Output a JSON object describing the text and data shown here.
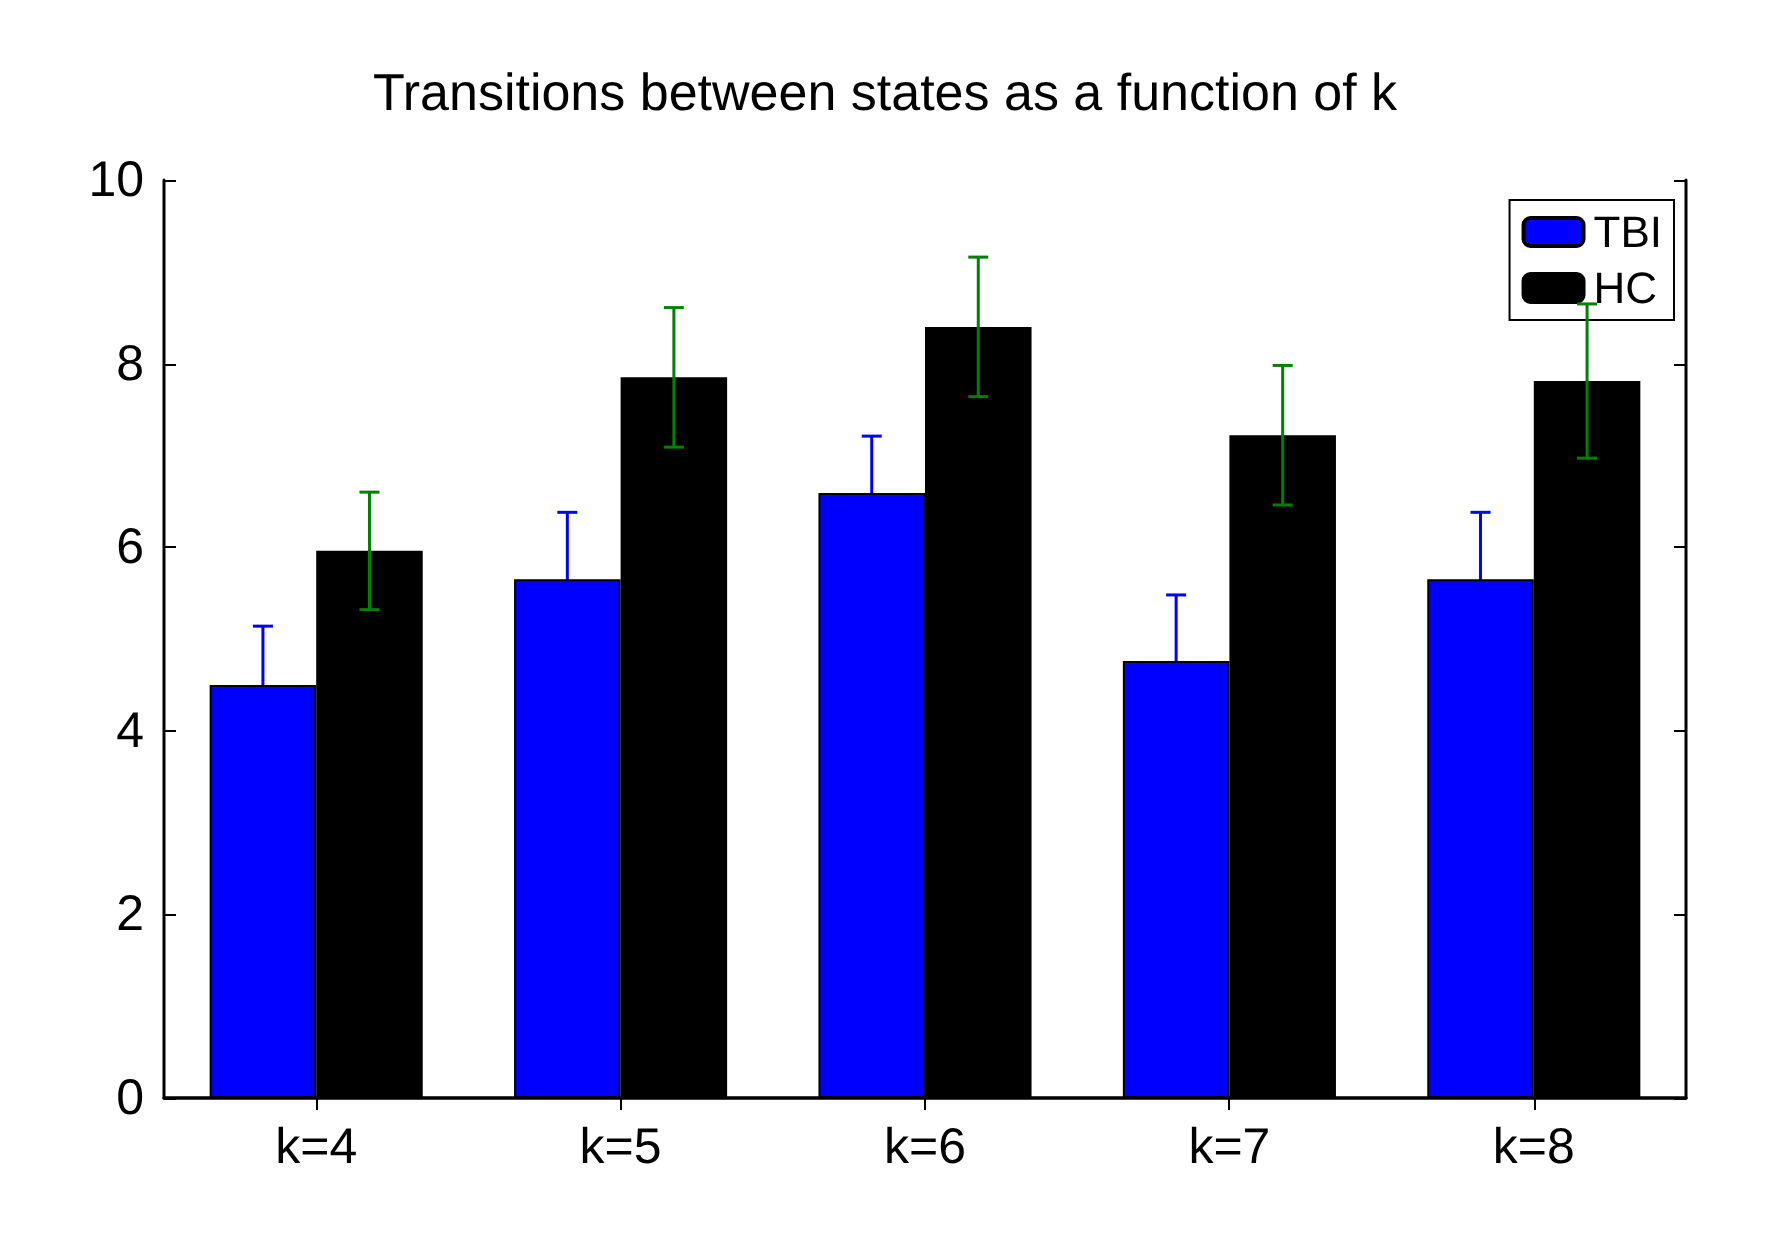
{
  "chart_data": {
    "type": "bar",
    "title": "Transitions between states as a function of k",
    "categories": [
      "k=4",
      "k=5",
      "k=6",
      "k=7",
      "k=8"
    ],
    "series": [
      {
        "name": "TBI",
        "color": "#0000ff",
        "values": [
          4.5,
          5.65,
          6.59,
          4.76,
          5.65
        ],
        "errors": [
          0.64,
          0.73,
          0.62,
          0.72,
          0.73
        ]
      },
      {
        "name": "HC",
        "color": "#000000",
        "values": [
          5.96,
          7.85,
          8.4,
          7.22,
          7.81
        ],
        "errors": [
          0.64,
          0.76,
          0.76,
          0.76,
          0.84
        ]
      }
    ],
    "ylim": [
      0,
      10
    ],
    "yticks": [
      0,
      2,
      4,
      6,
      8,
      10
    ],
    "legend": "top right",
    "grid": false
  }
}
